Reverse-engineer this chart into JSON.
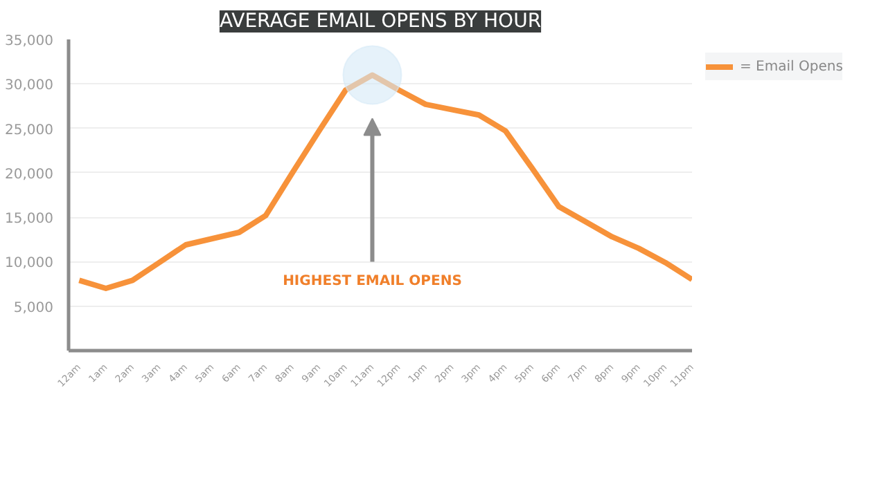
{
  "chart_data": {
    "type": "line",
    "title": "AVERAGE EMAIL OPENS BY HOUR",
    "categories": [
      "12am",
      "1am",
      "2am",
      "3am",
      "4am",
      "5am",
      "6am",
      "7am",
      "8am",
      "9am",
      "10am",
      "11am",
      "12pm",
      "1pm",
      "2pm",
      "3pm",
      "4pm",
      "5pm",
      "6pm",
      "7pm",
      "8pm",
      "9pm",
      "10pm",
      "11pm"
    ],
    "series": [
      {
        "name": "= Email Opens",
        "color": "#f7923a",
        "values": [
          7900,
          7000,
          7900,
          9900,
          11900,
          12600,
          13300,
          15200,
          20000,
          24700,
          29300,
          31000,
          29300,
          27700,
          27100,
          26500,
          24700,
          20500,
          16200,
          14500,
          12800,
          11500,
          9900,
          8000
        ]
      }
    ],
    "ylim": [
      0,
      35000
    ],
    "yticks": [
      {
        "value": 5000,
        "label": "5,000"
      },
      {
        "value": 10000,
        "label": "10,000"
      },
      {
        "value": 15000,
        "label": "15,000"
      },
      {
        "value": 20000,
        "label": "20,000"
      },
      {
        "value": 25000,
        "label": "25,000"
      },
      {
        "value": 30000,
        "label": "30,000"
      },
      {
        "value": 35000,
        "label": "35,000"
      }
    ],
    "annotations": [
      "HIGHEST EMAIL OPENS"
    ],
    "grid": "y",
    "legend": "top right",
    "line_style": "solid"
  }
}
